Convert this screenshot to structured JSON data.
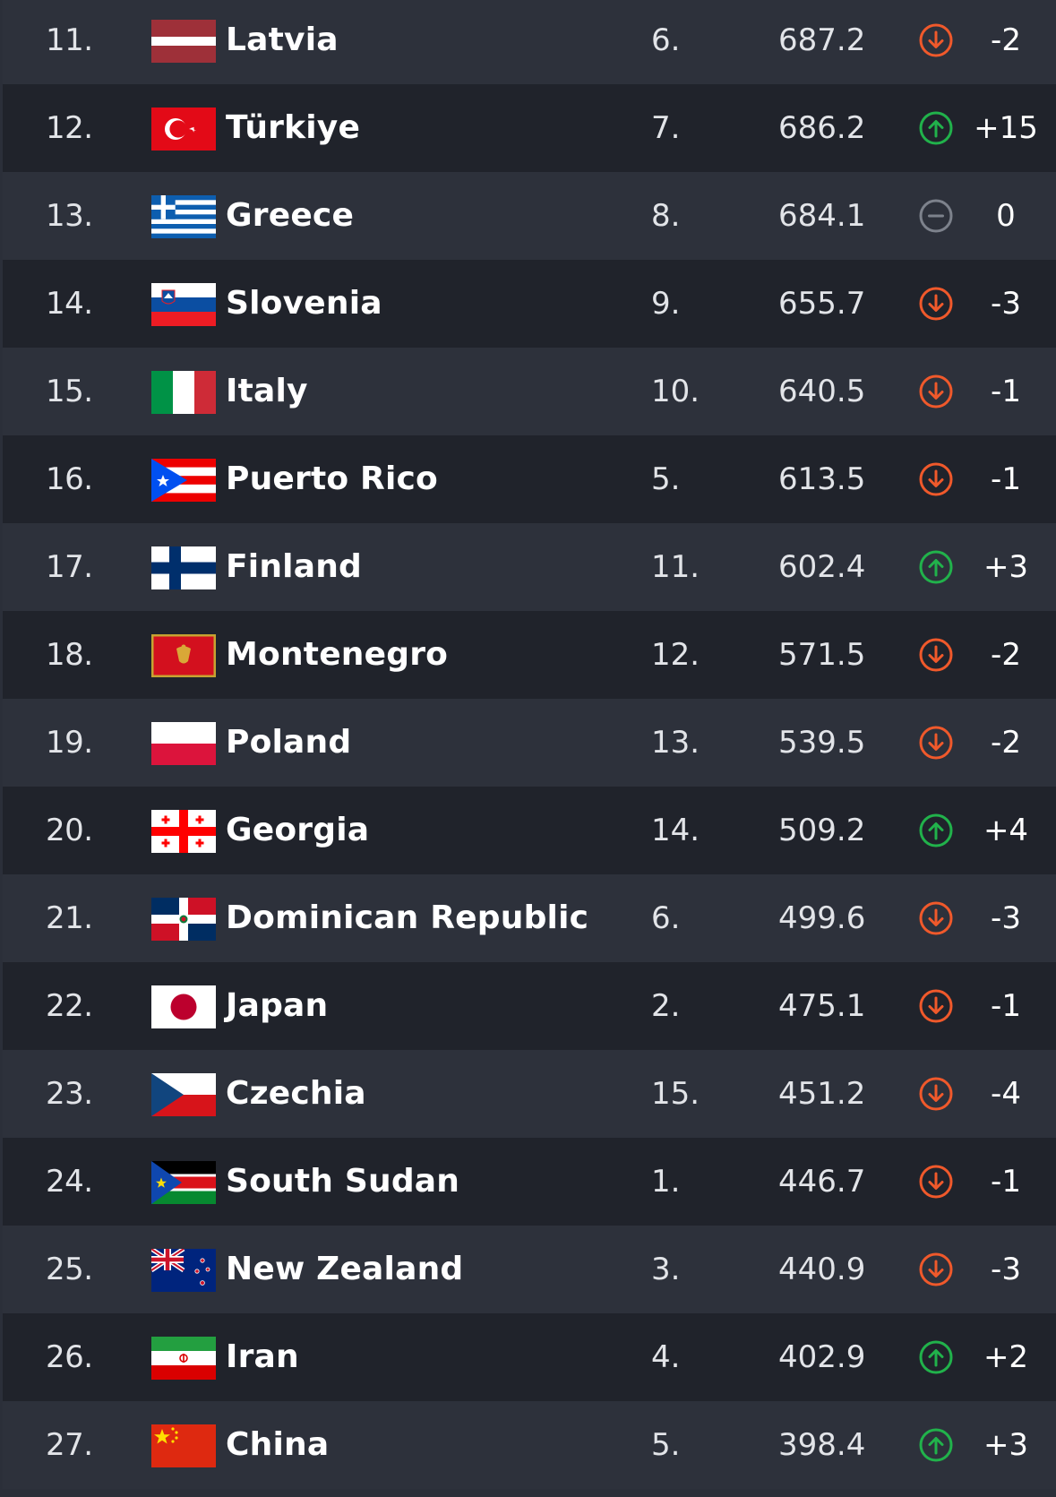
{
  "colors": {
    "row_light": "#2d313b",
    "row_dark": "#20232b",
    "down": "#f0592b",
    "up": "#21b24b",
    "same": "#7d828c"
  },
  "rows": [
    {
      "rank": "11.",
      "country": "Latvia",
      "flag": "latvia-flag",
      "conf_rank": "6.",
      "points": "687.2",
      "trend": "down",
      "change": "-2"
    },
    {
      "rank": "12.",
      "country": "Türkiye",
      "flag": "turkiye-flag",
      "conf_rank": "7.",
      "points": "686.2",
      "trend": "up",
      "change": "+15"
    },
    {
      "rank": "13.",
      "country": "Greece",
      "flag": "greece-flag",
      "conf_rank": "8.",
      "points": "684.1",
      "trend": "same",
      "change": "0"
    },
    {
      "rank": "14.",
      "country": "Slovenia",
      "flag": "slovenia-flag",
      "conf_rank": "9.",
      "points": "655.7",
      "trend": "down",
      "change": "-3"
    },
    {
      "rank": "15.",
      "country": "Italy",
      "flag": "italy-flag",
      "conf_rank": "10.",
      "points": "640.5",
      "trend": "down",
      "change": "-1"
    },
    {
      "rank": "16.",
      "country": "Puerto Rico",
      "flag": "puerto-rico-flag",
      "conf_rank": "5.",
      "points": "613.5",
      "trend": "down",
      "change": "-1"
    },
    {
      "rank": "17.",
      "country": "Finland",
      "flag": "finland-flag",
      "conf_rank": "11.",
      "points": "602.4",
      "trend": "up",
      "change": "+3"
    },
    {
      "rank": "18.",
      "country": "Montenegro",
      "flag": "montenegro-flag",
      "conf_rank": "12.",
      "points": "571.5",
      "trend": "down",
      "change": "-2"
    },
    {
      "rank": "19.",
      "country": "Poland",
      "flag": "poland-flag",
      "conf_rank": "13.",
      "points": "539.5",
      "trend": "down",
      "change": "-2"
    },
    {
      "rank": "20.",
      "country": "Georgia",
      "flag": "georgia-flag",
      "conf_rank": "14.",
      "points": "509.2",
      "trend": "up",
      "change": "+4"
    },
    {
      "rank": "21.",
      "country": "Dominican Republic",
      "flag": "dominican-republic-flag",
      "conf_rank": "6.",
      "points": "499.6",
      "trend": "down",
      "change": "-3"
    },
    {
      "rank": "22.",
      "country": "Japan",
      "flag": "japan-flag",
      "conf_rank": "2.",
      "points": "475.1",
      "trend": "down",
      "change": "-1"
    },
    {
      "rank": "23.",
      "country": "Czechia",
      "flag": "czechia-flag",
      "conf_rank": "15.",
      "points": "451.2",
      "trend": "down",
      "change": "-4"
    },
    {
      "rank": "24.",
      "country": "South Sudan",
      "flag": "south-sudan-flag",
      "conf_rank": "1.",
      "points": "446.7",
      "trend": "down",
      "change": "-1"
    },
    {
      "rank": "25.",
      "country": "New Zealand",
      "flag": "new-zealand-flag",
      "conf_rank": "3.",
      "points": "440.9",
      "trend": "down",
      "change": "-3"
    },
    {
      "rank": "26.",
      "country": "Iran",
      "flag": "iran-flag",
      "conf_rank": "4.",
      "points": "402.9",
      "trend": "up",
      "change": "+2"
    },
    {
      "rank": "27.",
      "country": "China",
      "flag": "china-flag",
      "conf_rank": "5.",
      "points": "398.4",
      "trend": "up",
      "change": "+3"
    }
  ]
}
